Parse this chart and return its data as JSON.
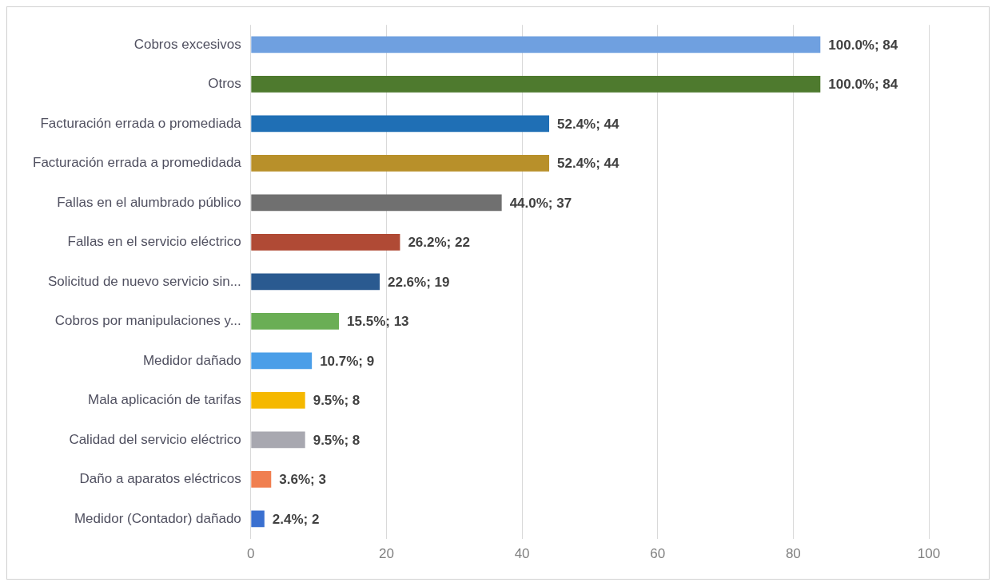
{
  "chart_data": {
    "type": "bar",
    "orientation": "horizontal",
    "categories": [
      "Cobros excesivos",
      "Otros",
      "Facturación errada o promediada",
      "Facturación errada a promedidada",
      "Fallas en el alumbrado público",
      "Fallas en el servicio eléctrico",
      "Solicitud de nuevo servicio sin...",
      "Cobros por manipulaciones y...",
      "Medidor dañado",
      "Mala aplicación de tarifas",
      "Calidad del servicio eléctrico",
      "Daño a aparatos eléctricos",
      "Medidor (Contador) dañado"
    ],
    "values": [
      84,
      84,
      44,
      44,
      37,
      22,
      19,
      13,
      9,
      8,
      8,
      3,
      2
    ],
    "value_labels": [
      "100.0%; 84",
      "100.0%; 84",
      "52.4%; 44",
      "52.4%; 44",
      "44.0%; 37",
      "26.2%; 22",
      "22.6%; 19",
      "15.5%; 13",
      "10.7%; 9",
      "9.5%; 8",
      "9.5%; 8",
      "3.6%; 3",
      "2.4%; 2"
    ],
    "colors": [
      "#6fa0e0",
      "#4e7a2e",
      "#1f6fb5",
      "#b8902a",
      "#707070",
      "#b04a35",
      "#2a5a90",
      "#6aae55",
      "#4a9ee8",
      "#f5b800",
      "#a8a8b0",
      "#f07f50",
      "#3a70d0"
    ],
    "xlim": [
      0,
      100
    ],
    "xticks": [
      0,
      20,
      40,
      60,
      80,
      100
    ],
    "grid": "x",
    "legend": false
  }
}
